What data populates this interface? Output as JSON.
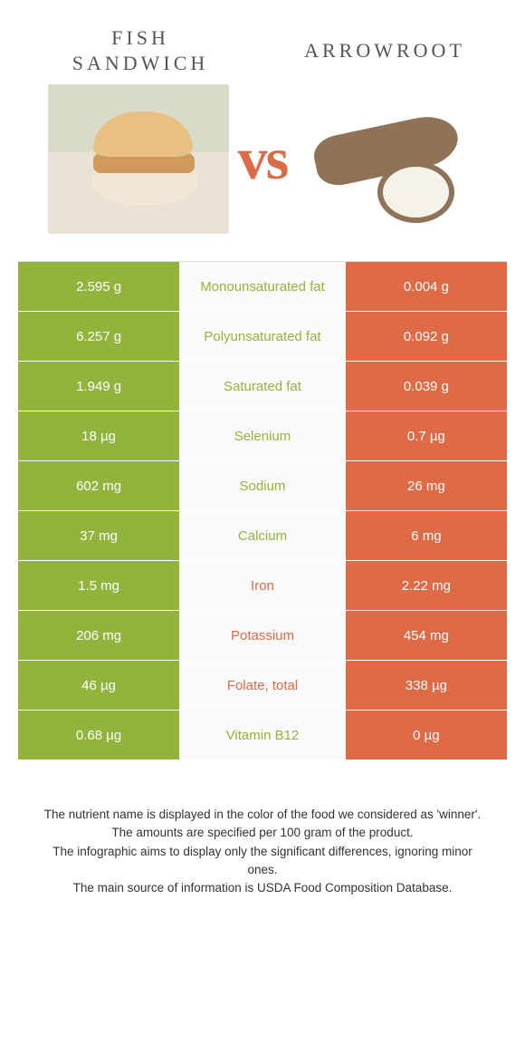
{
  "titles": {
    "left": "Fish Sandwich",
    "right": "Arrowroot",
    "vs": "vs"
  },
  "colors": {
    "left": "#92b43c",
    "right": "#df6a46"
  },
  "rows": [
    {
      "left": "2.595 g",
      "mid": "Monounsaturated fat",
      "right": "0.004 g",
      "winner": "left"
    },
    {
      "left": "6.257 g",
      "mid": "Polyunsaturated fat",
      "right": "0.092 g",
      "winner": "left"
    },
    {
      "left": "1.949 g",
      "mid": "Saturated fat",
      "right": "0.039 g",
      "winner": "left"
    },
    {
      "left": "18 µg",
      "mid": "Selenium",
      "right": "0.7 µg",
      "winner": "left"
    },
    {
      "left": "602 mg",
      "mid": "Sodium",
      "right": "26 mg",
      "winner": "left"
    },
    {
      "left": "37 mg",
      "mid": "Calcium",
      "right": "6 mg",
      "winner": "left"
    },
    {
      "left": "1.5 mg",
      "mid": "Iron",
      "right": "2.22 mg",
      "winner": "right"
    },
    {
      "left": "206 mg",
      "mid": "Potassium",
      "right": "454 mg",
      "winner": "right"
    },
    {
      "left": "46 µg",
      "mid": "Folate, total",
      "right": "338 µg",
      "winner": "right"
    },
    {
      "left": "0.68 µg",
      "mid": "Vitamin B12",
      "right": "0 µg",
      "winner": "left"
    }
  ],
  "footer": {
    "l1": "The nutrient name is displayed in the color of the food we considered as 'winner'.",
    "l2": "The amounts are specified per 100 gram of the product.",
    "l3": "The infographic aims to display only the significant differences, ignoring minor ones.",
    "l4": "The main source of information is USDA Food Composition Database."
  }
}
